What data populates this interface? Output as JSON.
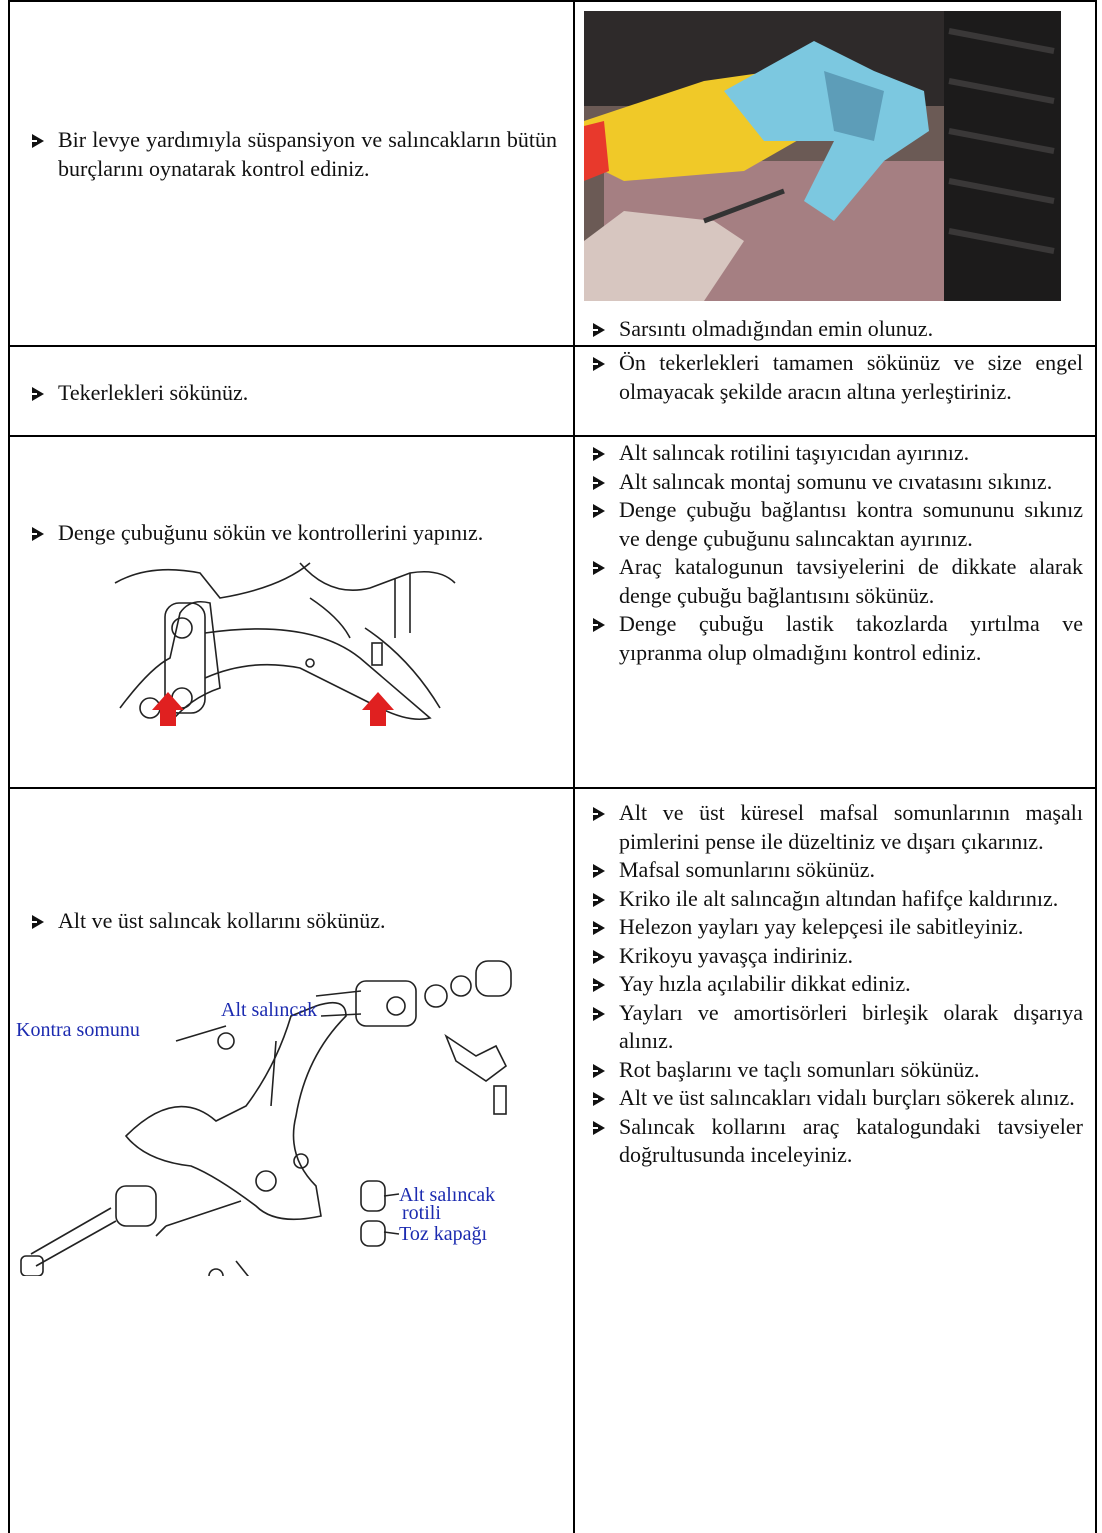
{
  "table": {
    "rows": [
      {
        "left": [
          "Bir levye yardımıyla süspansiyon ve salıncakların bütün burçlarını oynatarak kontrol ediniz."
        ],
        "right": [
          "Sarsıntı olmadığından emin olunuz."
        ]
      },
      {
        "left": [
          "Tekerlekleri sökünüz."
        ],
        "right": [
          "Ön tekerlekleri tamamen sökünüz ve size engel olmayacak şekilde aracın altına yerleştiriniz."
        ]
      },
      {
        "left": [
          "Denge çubuğunu sökün ve kontrollerini yapınız."
        ],
        "right": [
          "Alt salıncak rotilini taşıyıcıdan ayırınız.",
          "Alt salıncak montaj somunu ve cıvatasını sıkınız.",
          "Denge çubuğu bağlantısı kontra somununu sıkınız ve denge çubuğunu salıncaktan ayırınız.",
          "Araç katalogunun tavsiyelerini de dikkate alarak denge çubuğu bağlantısını sökünüz.",
          "Denge çubuğu lastik takozlarda yırtılma ve yıpranma olup olmadığını kontrol ediniz."
        ]
      },
      {
        "left": [
          "Alt ve üst salıncak kollarını sökünüz."
        ],
        "right": [
          "Alt ve üst küresel mafsal somunlarının maşalı pimlerini pense ile düzeltiniz ve dışarı çıkarınız.",
          "Mafsal somunlarını sökünüz.",
          "Kriko ile alt salıncağın altından hafifçe kaldırınız.",
          "Helezon yayları yay kelepçesi ile sabitleyiniz.",
          "Krikoyu yavaşça indiriniz.",
          "Yay hızla açılabilir dikkat ediniz.",
          "Yayları ve amortisörleri birleşik olarak dışarıya alınız.",
          "Rot başlarını ve taçlı somunları sökünüz.",
          "Alt ve üst salıncakları vidalı burçları sökerek alınız.",
          "Salıncak kollarını araç katalogundaki tavsiyeler doğrultusunda inceleyiniz."
        ],
        "figure_labels": {
          "kontra": "Kontra somunu",
          "arm": "Alt salıncak",
          "joint_1": "Alt salıncak",
          "joint_2": "rotili",
          "boot": "Toz kapağı"
        }
      }
    ]
  }
}
